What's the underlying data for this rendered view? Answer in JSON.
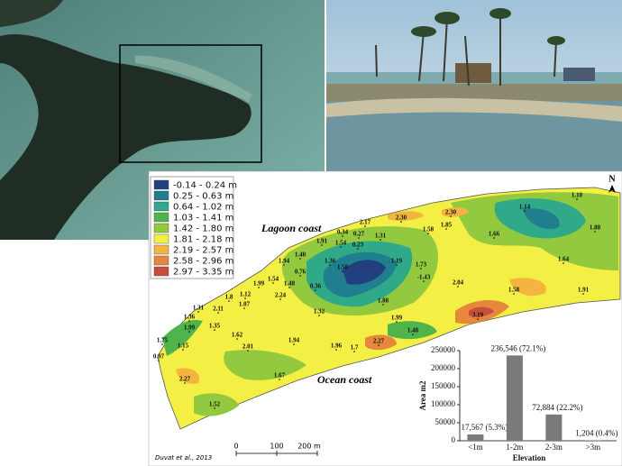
{
  "map": {
    "legend": [
      {
        "label": "-0.14 - 0.24 m",
        "color": "#23407e"
      },
      {
        "label": "0.25 - 0.63 m",
        "color": "#1f7f8e"
      },
      {
        "label": "0.64 - 1.02 m",
        "color": "#2fa987"
      },
      {
        "label": "1.03 - 1.41 m",
        "color": "#4fb44c"
      },
      {
        "label": "1.42 - 1.80 m",
        "color": "#93c93f"
      },
      {
        "label": "1.81 - 2.18 m",
        "color": "#f3ef45"
      },
      {
        "label": "2.19 - 2.57 m",
        "color": "#f3b540"
      },
      {
        "label": "2.58 - 2.96 m",
        "color": "#e7873b"
      },
      {
        "label": "2.97 - 3.35 m",
        "color": "#c54f3b"
      }
    ],
    "lagoon_label": "Lagoon coast",
    "ocean_label": "Ocean coast",
    "north": "N",
    "scale": [
      "0",
      "100",
      "200 m"
    ],
    "credit": "Duvat et al., 2013",
    "spot_heights": [
      "2.17",
      "2.30",
      "2.30",
      "1.10",
      "1.14",
      "1.88",
      "0.34",
      "0.27",
      "1.31",
      "1.58",
      "1.85",
      "1.66",
      "1.91",
      "1.54",
      "0.23",
      "1.40",
      "1.94",
      "1.36",
      "1.19",
      "1.73",
      "1.64",
      "0.76",
      "1.58",
      "1.54",
      "1.48",
      "-1.43",
      "2.04",
      "0.36",
      "1.99",
      "2.24",
      "1.58",
      "1.91",
      "1.12",
      "1.8",
      "1.07",
      "1.88",
      "1.32",
      "1.31",
      "2.11",
      "3.19",
      "1.99",
      "1.36",
      "1.99",
      "1.35",
      "1.62",
      "1.48",
      "1.94",
      "2.01",
      "1.96",
      "1.7",
      "2.27",
      "1.75",
      "1.15",
      "0.97",
      "2.27",
      "1.67",
      "1.52"
    ]
  },
  "chart_data": {
    "type": "bar",
    "categories": [
      "<1m",
      "1-2m",
      "2-3m",
      ">3m"
    ],
    "values": [
      17567,
      236546,
      72884,
      1204
    ],
    "value_labels": [
      "17,567 (5.3%)",
      "236,546  (72.1%)",
      "72,884 (22.2%)",
      "1,204 (0.4%)"
    ],
    "color": "#7a7a7a",
    "ylim": [
      0,
      250000
    ],
    "yticks": [
      0,
      50000,
      100000,
      150000,
      200000,
      250000
    ],
    "ylabel": "Area m2",
    "xlabel": "Elevation"
  }
}
